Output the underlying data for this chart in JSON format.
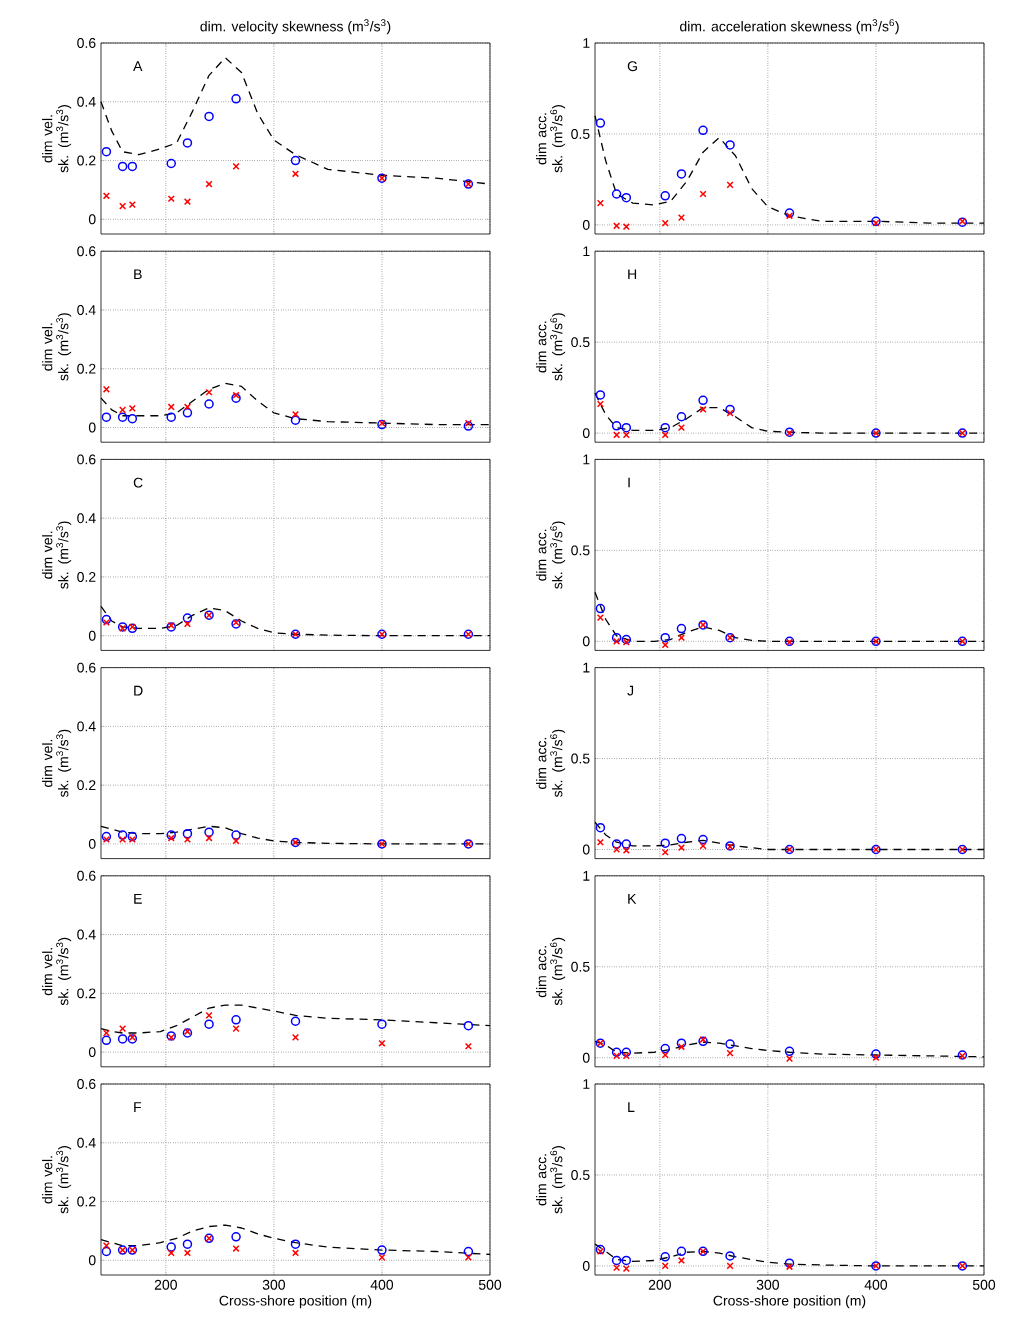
{
  "chart_data": [
    {
      "type": "scatter",
      "title": "dim. velocity skewness (m$^{3}$/s$^{3}$)",
      "ylabel": "dim vel. sk. (m$^{3}$/s$^{3}$)",
      "annotations": [
        "A"
      ],
      "xlim": [
        140,
        500
      ],
      "ylim": [
        -0.05,
        0.6
      ],
      "xticks": [
        200,
        300,
        400,
        500
      ],
      "yticks": [
        0,
        0.2,
        0.4,
        0.6
      ],
      "grid": true,
      "tick_labels": "y",
      "x": [
        145,
        160,
        169,
        205,
        220,
        240,
        265,
        320,
        400,
        480
      ],
      "series": [
        {
          "type": "line",
          "color": "#000000",
          "line_style": "dashed",
          "x": [
            140,
            150,
            160,
            175,
            195,
            210,
            225,
            240,
            255,
            270,
            285,
            300,
            320,
            350,
            400,
            450,
            500
          ],
          "values": [
            0.4,
            0.3,
            0.23,
            0.22,
            0.24,
            0.26,
            0.37,
            0.49,
            0.55,
            0.5,
            0.36,
            0.27,
            0.22,
            0.17,
            0.15,
            0.14,
            0.12
          ]
        },
        {
          "color": "#0000ff",
          "marker": "circle",
          "values": [
            0.23,
            0.18,
            0.18,
            0.19,
            0.26,
            0.35,
            0.41,
            0.2,
            0.14,
            0.12
          ]
        },
        {
          "color": "#ff0000",
          "marker": "cross",
          "values": [
            0.08,
            0.045,
            0.05,
            0.07,
            0.06,
            0.12,
            0.18,
            0.155,
            0.14,
            0.12
          ]
        }
      ]
    },
    {
      "type": "scatter",
      "title": "dim. acceleration skewness (m$^{3}$/s$^{6}$)",
      "ylabel": "dim acc. sk. (m$^{3}$/s$^{6}$)",
      "annotations": [
        "G"
      ],
      "xlim": [
        140,
        500
      ],
      "ylim": [
        -0.05,
        1
      ],
      "xticks": [
        200,
        300,
        400,
        500
      ],
      "yticks": [
        0,
        0.5,
        1
      ],
      "grid": true,
      "tick_labels": "y",
      "x": [
        145,
        160,
        169,
        205,
        220,
        240,
        265,
        320,
        400,
        480
      ],
      "series": [
        {
          "type": "line",
          "color": "#000000",
          "line_style": "dashed",
          "x": [
            140,
            150,
            160,
            175,
            195,
            210,
            225,
            240,
            255,
            270,
            285,
            300,
            320,
            350,
            400,
            450,
            500
          ],
          "values": [
            0.6,
            0.35,
            0.17,
            0.12,
            0.11,
            0.13,
            0.24,
            0.4,
            0.48,
            0.38,
            0.2,
            0.1,
            0.05,
            0.02,
            0.02,
            0.01,
            0.01
          ]
        },
        {
          "color": "#0000ff",
          "marker": "circle",
          "values": [
            0.56,
            0.17,
            0.15,
            0.16,
            0.28,
            0.52,
            0.44,
            0.065,
            0.02,
            0.015
          ]
        },
        {
          "color": "#ff0000",
          "marker": "cross",
          "values": [
            0.12,
            -0.005,
            -0.01,
            0.01,
            0.04,
            0.17,
            0.22,
            0.05,
            0.01,
            0.02
          ]
        }
      ]
    },
    {
      "type": "scatter",
      "ylabel": "dim vel. sk. (m$^{3}$/s$^{3}$)",
      "annotations": [
        "B"
      ],
      "xlim": [
        140,
        500
      ],
      "ylim": [
        -0.05,
        0.6
      ],
      "xticks": [
        200,
        300,
        400,
        500
      ],
      "yticks": [
        0,
        0.2,
        0.4,
        0.6
      ],
      "grid": true,
      "tick_labels": "y",
      "x": [
        145,
        160,
        169,
        205,
        220,
        240,
        265,
        320,
        400,
        480
      ],
      "series": [
        {
          "type": "line",
          "color": "#000000",
          "line_style": "dashed",
          "x": [
            140,
            150,
            160,
            175,
            195,
            210,
            225,
            240,
            255,
            270,
            285,
            300,
            320,
            350,
            400,
            450,
            500
          ],
          "values": [
            0.1,
            0.06,
            0.04,
            0.04,
            0.04,
            0.05,
            0.09,
            0.13,
            0.15,
            0.14,
            0.09,
            0.05,
            0.03,
            0.02,
            0.015,
            0.01,
            0.01
          ]
        },
        {
          "color": "#0000ff",
          "marker": "circle",
          "values": [
            0.035,
            0.035,
            0.03,
            0.035,
            0.05,
            0.08,
            0.1,
            0.025,
            0.01,
            0.005
          ]
        },
        {
          "color": "#ff0000",
          "marker": "cross",
          "values": [
            0.13,
            0.06,
            0.065,
            0.07,
            0.07,
            0.12,
            0.11,
            0.045,
            0.015,
            0.015
          ]
        }
      ]
    },
    {
      "type": "scatter",
      "ylabel": "dim acc. sk. (m$^{3}$/s$^{6}$)",
      "annotations": [
        "H"
      ],
      "xlim": [
        140,
        500
      ],
      "ylim": [
        -0.05,
        1
      ],
      "xticks": [
        200,
        300,
        400,
        500
      ],
      "yticks": [
        0,
        0.5,
        1
      ],
      "grid": true,
      "tick_labels": "y",
      "x": [
        145,
        160,
        169,
        205,
        220,
        240,
        265,
        320,
        400,
        480
      ],
      "series": [
        {
          "type": "line",
          "color": "#000000",
          "line_style": "dashed",
          "x": [
            140,
            150,
            160,
            175,
            195,
            210,
            225,
            240,
            255,
            270,
            285,
            300,
            320,
            350,
            400,
            450,
            500
          ],
          "values": [
            0.22,
            0.1,
            0.03,
            0.015,
            0.015,
            0.03,
            0.08,
            0.14,
            0.14,
            0.09,
            0.03,
            0.01,
            0.005,
            0,
            0,
            0,
            0
          ]
        },
        {
          "color": "#0000ff",
          "marker": "circle",
          "values": [
            0.21,
            0.04,
            0.03,
            0.03,
            0.09,
            0.18,
            0.13,
            0.005,
            0,
            0
          ]
        },
        {
          "color": "#ff0000",
          "marker": "cross",
          "values": [
            0.16,
            -0.01,
            -0.01,
            -0.01,
            0.03,
            0.13,
            0.11,
            0,
            0,
            0
          ]
        }
      ]
    },
    {
      "type": "scatter",
      "ylabel": "dim vel. sk. (m$^{3}$/s$^{3}$)",
      "annotations": [
        "C"
      ],
      "xlim": [
        140,
        500
      ],
      "ylim": [
        -0.05,
        0.6
      ],
      "xticks": [
        200,
        300,
        400,
        500
      ],
      "yticks": [
        0,
        0.2,
        0.4,
        0.6
      ],
      "grid": true,
      "tick_labels": "y",
      "x": [
        145,
        160,
        169,
        205,
        220,
        240,
        265,
        320,
        400,
        480
      ],
      "series": [
        {
          "type": "line",
          "color": "#000000",
          "line_style": "dashed",
          "x": [
            140,
            150,
            160,
            175,
            195,
            210,
            225,
            240,
            255,
            270,
            285,
            300,
            320,
            350,
            400,
            450,
            500
          ],
          "values": [
            0.1,
            0.05,
            0.03,
            0.025,
            0.025,
            0.035,
            0.07,
            0.095,
            0.085,
            0.05,
            0.025,
            0.01,
            0.005,
            0.002,
            0,
            0,
            0
          ]
        },
        {
          "color": "#0000ff",
          "marker": "circle",
          "values": [
            0.055,
            0.03,
            0.025,
            0.03,
            0.06,
            0.07,
            0.04,
            0.005,
            0.005,
            0.005
          ]
        },
        {
          "color": "#ff0000",
          "marker": "cross",
          "values": [
            0.045,
            0.025,
            0.03,
            0.035,
            0.04,
            0.07,
            0.045,
            0.005,
            0.005,
            0.005
          ]
        }
      ]
    },
    {
      "type": "scatter",
      "ylabel": "dim acc. sk. (m$^{3}$/s$^{6}$)",
      "annotations": [
        "I"
      ],
      "xlim": [
        140,
        500
      ],
      "ylim": [
        -0.05,
        1
      ],
      "xticks": [
        200,
        300,
        400,
        500
      ],
      "yticks": [
        0,
        0.5,
        1
      ],
      "grid": true,
      "tick_labels": "y",
      "x": [
        145,
        160,
        169,
        205,
        220,
        240,
        265,
        320,
        400,
        480
      ],
      "series": [
        {
          "type": "line",
          "color": "#000000",
          "line_style": "dashed",
          "x": [
            140,
            150,
            160,
            175,
            195,
            210,
            225,
            240,
            255,
            270,
            285,
            300,
            320,
            350,
            400,
            450,
            500
          ],
          "values": [
            0.27,
            0.12,
            0.03,
            0,
            0,
            0.01,
            0.05,
            0.08,
            0.06,
            0.02,
            0.005,
            0,
            0,
            0,
            0,
            0,
            0
          ]
        },
        {
          "color": "#0000ff",
          "marker": "circle",
          "values": [
            0.18,
            0.02,
            0.01,
            0.02,
            0.07,
            0.09,
            0.02,
            0,
            0,
            0
          ]
        },
        {
          "color": "#ff0000",
          "marker": "cross",
          "values": [
            0.13,
            0,
            -0.005,
            -0.02,
            0.02,
            0.09,
            0.02,
            -0.005,
            0,
            0
          ]
        }
      ]
    },
    {
      "type": "scatter",
      "ylabel": "dim vel. sk. (m$^{3}$/s$^{3}$)",
      "annotations": [
        "D"
      ],
      "xlim": [
        140,
        500
      ],
      "ylim": [
        -0.05,
        0.6
      ],
      "xticks": [
        200,
        300,
        400,
        500
      ],
      "yticks": [
        0,
        0.2,
        0.4,
        0.6
      ],
      "grid": true,
      "tick_labels": "y",
      "x": [
        145,
        160,
        169,
        205,
        220,
        240,
        265,
        320,
        400,
        480
      ],
      "series": [
        {
          "type": "line",
          "color": "#000000",
          "line_style": "dashed",
          "x": [
            140,
            150,
            160,
            175,
            195,
            210,
            225,
            240,
            255,
            270,
            285,
            300,
            320,
            350,
            400,
            450,
            500
          ],
          "values": [
            0.06,
            0.05,
            0.04,
            0.035,
            0.035,
            0.04,
            0.05,
            0.06,
            0.055,
            0.035,
            0.02,
            0.01,
            0.005,
            0.002,
            0,
            0,
            0
          ]
        },
        {
          "color": "#0000ff",
          "marker": "circle",
          "values": [
            0.025,
            0.03,
            0.025,
            0.03,
            0.035,
            0.04,
            0.03,
            0.005,
            0,
            0
          ]
        },
        {
          "color": "#ff0000",
          "marker": "cross",
          "values": [
            0.015,
            0.015,
            0.015,
            0.02,
            0.015,
            0.02,
            0.01,
            0.005,
            0,
            0
          ]
        }
      ]
    },
    {
      "type": "scatter",
      "ylabel": "dim acc. sk. (m$^{3}$/s$^{6}$)",
      "annotations": [
        "J"
      ],
      "xlim": [
        140,
        500
      ],
      "ylim": [
        -0.05,
        1
      ],
      "xticks": [
        200,
        300,
        400,
        500
      ],
      "yticks": [
        0,
        0.5,
        1
      ],
      "grid": true,
      "tick_labels": "y",
      "x": [
        145,
        160,
        169,
        205,
        220,
        240,
        265,
        320,
        400,
        480
      ],
      "series": [
        {
          "type": "line",
          "color": "#000000",
          "line_style": "dashed",
          "x": [
            140,
            150,
            160,
            175,
            195,
            210,
            225,
            240,
            255,
            270,
            285,
            300,
            320,
            350,
            400,
            450,
            500
          ],
          "values": [
            0.15,
            0.08,
            0.04,
            0.02,
            0.02,
            0.025,
            0.04,
            0.05,
            0.035,
            0.02,
            0.01,
            0,
            0,
            0,
            0,
            0,
            0
          ]
        },
        {
          "color": "#0000ff",
          "marker": "circle",
          "values": [
            0.12,
            0.03,
            0.03,
            0.035,
            0.06,
            0.055,
            0.02,
            0,
            0,
            0
          ]
        },
        {
          "color": "#ff0000",
          "marker": "cross",
          "values": [
            0.04,
            0,
            -0.005,
            -0.015,
            0.01,
            0.02,
            0.015,
            0,
            0,
            0
          ]
        }
      ]
    },
    {
      "type": "scatter",
      "ylabel": "dim vel. sk. (m$^{3}$/s$^{3}$)",
      "annotations": [
        "E"
      ],
      "xlim": [
        140,
        500
      ],
      "ylim": [
        -0.05,
        0.6
      ],
      "xticks": [
        200,
        300,
        400,
        500
      ],
      "yticks": [
        0,
        0.2,
        0.4,
        0.6
      ],
      "grid": true,
      "tick_labels": "y",
      "x": [
        145,
        160,
        169,
        205,
        220,
        240,
        265,
        320,
        400,
        480
      ],
      "series": [
        {
          "type": "line",
          "color": "#000000",
          "line_style": "dashed",
          "x": [
            140,
            150,
            160,
            175,
            195,
            210,
            225,
            240,
            255,
            270,
            285,
            300,
            320,
            350,
            400,
            450,
            500
          ],
          "values": [
            0.08,
            0.07,
            0.065,
            0.065,
            0.07,
            0.09,
            0.12,
            0.15,
            0.16,
            0.16,
            0.15,
            0.14,
            0.125,
            0.115,
            0.11,
            0.1,
            0.09
          ]
        },
        {
          "color": "#0000ff",
          "marker": "circle",
          "values": [
            0.04,
            0.045,
            0.045,
            0.055,
            0.065,
            0.095,
            0.11,
            0.105,
            0.095,
            0.09
          ]
        },
        {
          "color": "#ff0000",
          "marker": "cross",
          "values": [
            0.065,
            0.08,
            0.05,
            0.05,
            0.07,
            0.125,
            0.08,
            0.05,
            0.03,
            0.02
          ]
        }
      ]
    },
    {
      "type": "scatter",
      "ylabel": "dim acc. sk. (m$^{3}$/s$^{6}$)",
      "annotations": [
        "K"
      ],
      "xlim": [
        140,
        500
      ],
      "ylim": [
        -0.05,
        1
      ],
      "xticks": [
        200,
        300,
        400,
        500
      ],
      "yticks": [
        0,
        0.5,
        1
      ],
      "grid": true,
      "tick_labels": "y",
      "x": [
        145,
        160,
        169,
        205,
        220,
        240,
        265,
        320,
        400,
        480
      ],
      "series": [
        {
          "type": "line",
          "color": "#000000",
          "line_style": "dashed",
          "x": [
            140,
            150,
            160,
            175,
            195,
            210,
            225,
            240,
            255,
            270,
            285,
            300,
            320,
            350,
            400,
            450,
            500
          ],
          "values": [
            0.09,
            0.07,
            0.03,
            0.025,
            0.03,
            0.045,
            0.07,
            0.085,
            0.08,
            0.065,
            0.05,
            0.04,
            0.03,
            0.02,
            0.015,
            0.01,
            0.005
          ]
        },
        {
          "color": "#0000ff",
          "marker": "circle",
          "values": [
            0.08,
            0.03,
            0.03,
            0.05,
            0.08,
            0.09,
            0.075,
            0.035,
            0.02,
            0.015
          ]
        },
        {
          "color": "#ff0000",
          "marker": "cross",
          "values": [
            0.08,
            0.01,
            0.01,
            0.015,
            0.06,
            0.1,
            0.025,
            -0.005,
            0,
            0.01
          ]
        }
      ]
    },
    {
      "type": "scatter",
      "ylabel": "dim vel. sk. (m$^{3}$/s$^{3}$)",
      "xlabel": "Cross-shore position (m)",
      "annotations": [
        "F"
      ],
      "xlim": [
        140,
        500
      ],
      "ylim": [
        -0.05,
        0.6
      ],
      "xticks": [
        200,
        300,
        400,
        500
      ],
      "yticks": [
        0,
        0.2,
        0.4,
        0.6
      ],
      "grid": true,
      "x": [
        145,
        160,
        169,
        205,
        220,
        240,
        265,
        320,
        400,
        480
      ],
      "series": [
        {
          "type": "line",
          "color": "#000000",
          "line_style": "dashed",
          "x": [
            140,
            150,
            160,
            175,
            195,
            210,
            225,
            240,
            255,
            270,
            285,
            300,
            320,
            350,
            400,
            450,
            500
          ],
          "values": [
            0.07,
            0.06,
            0.05,
            0.05,
            0.06,
            0.075,
            0.1,
            0.115,
            0.12,
            0.11,
            0.09,
            0.075,
            0.06,
            0.045,
            0.035,
            0.03,
            0.02
          ]
        },
        {
          "color": "#0000ff",
          "marker": "circle",
          "values": [
            0.03,
            0.035,
            0.035,
            0.045,
            0.055,
            0.075,
            0.08,
            0.055,
            0.035,
            0.03
          ]
        },
        {
          "color": "#ff0000",
          "marker": "cross",
          "values": [
            0.05,
            0.035,
            0.035,
            0.025,
            0.025,
            0.075,
            0.04,
            0.025,
            0.01,
            0.01
          ]
        }
      ]
    },
    {
      "type": "scatter",
      "ylabel": "dim acc. sk. (m$^{3}$/s$^{6}$)",
      "xlabel": "Cross-shore position (m)",
      "annotations": [
        "L"
      ],
      "xlim": [
        140,
        500
      ],
      "ylim": [
        -0.05,
        1
      ],
      "xticks": [
        200,
        300,
        400,
        500
      ],
      "yticks": [
        0,
        0.5,
        1
      ],
      "grid": true,
      "x": [
        145,
        160,
        169,
        205,
        220,
        240,
        265,
        320,
        400,
        480
      ],
      "series": [
        {
          "type": "line",
          "color": "#000000",
          "line_style": "dashed",
          "x": [
            140,
            150,
            160,
            175,
            195,
            210,
            225,
            240,
            255,
            270,
            285,
            300,
            320,
            350,
            400,
            450,
            500
          ],
          "values": [
            0.12,
            0.08,
            0.035,
            0.025,
            0.03,
            0.05,
            0.075,
            0.08,
            0.07,
            0.05,
            0.035,
            0.02,
            0.01,
            0.005,
            0,
            0,
            0
          ]
        },
        {
          "color": "#0000ff",
          "marker": "circle",
          "values": [
            0.09,
            0.03,
            0.03,
            0.05,
            0.08,
            0.08,
            0.055,
            0.015,
            0,
            0
          ]
        },
        {
          "color": "#ff0000",
          "marker": "cross",
          "values": [
            0.08,
            -0.01,
            -0.015,
            0,
            0.03,
            0.08,
            0,
            -0.005,
            0,
            0
          ]
        }
      ]
    }
  ]
}
